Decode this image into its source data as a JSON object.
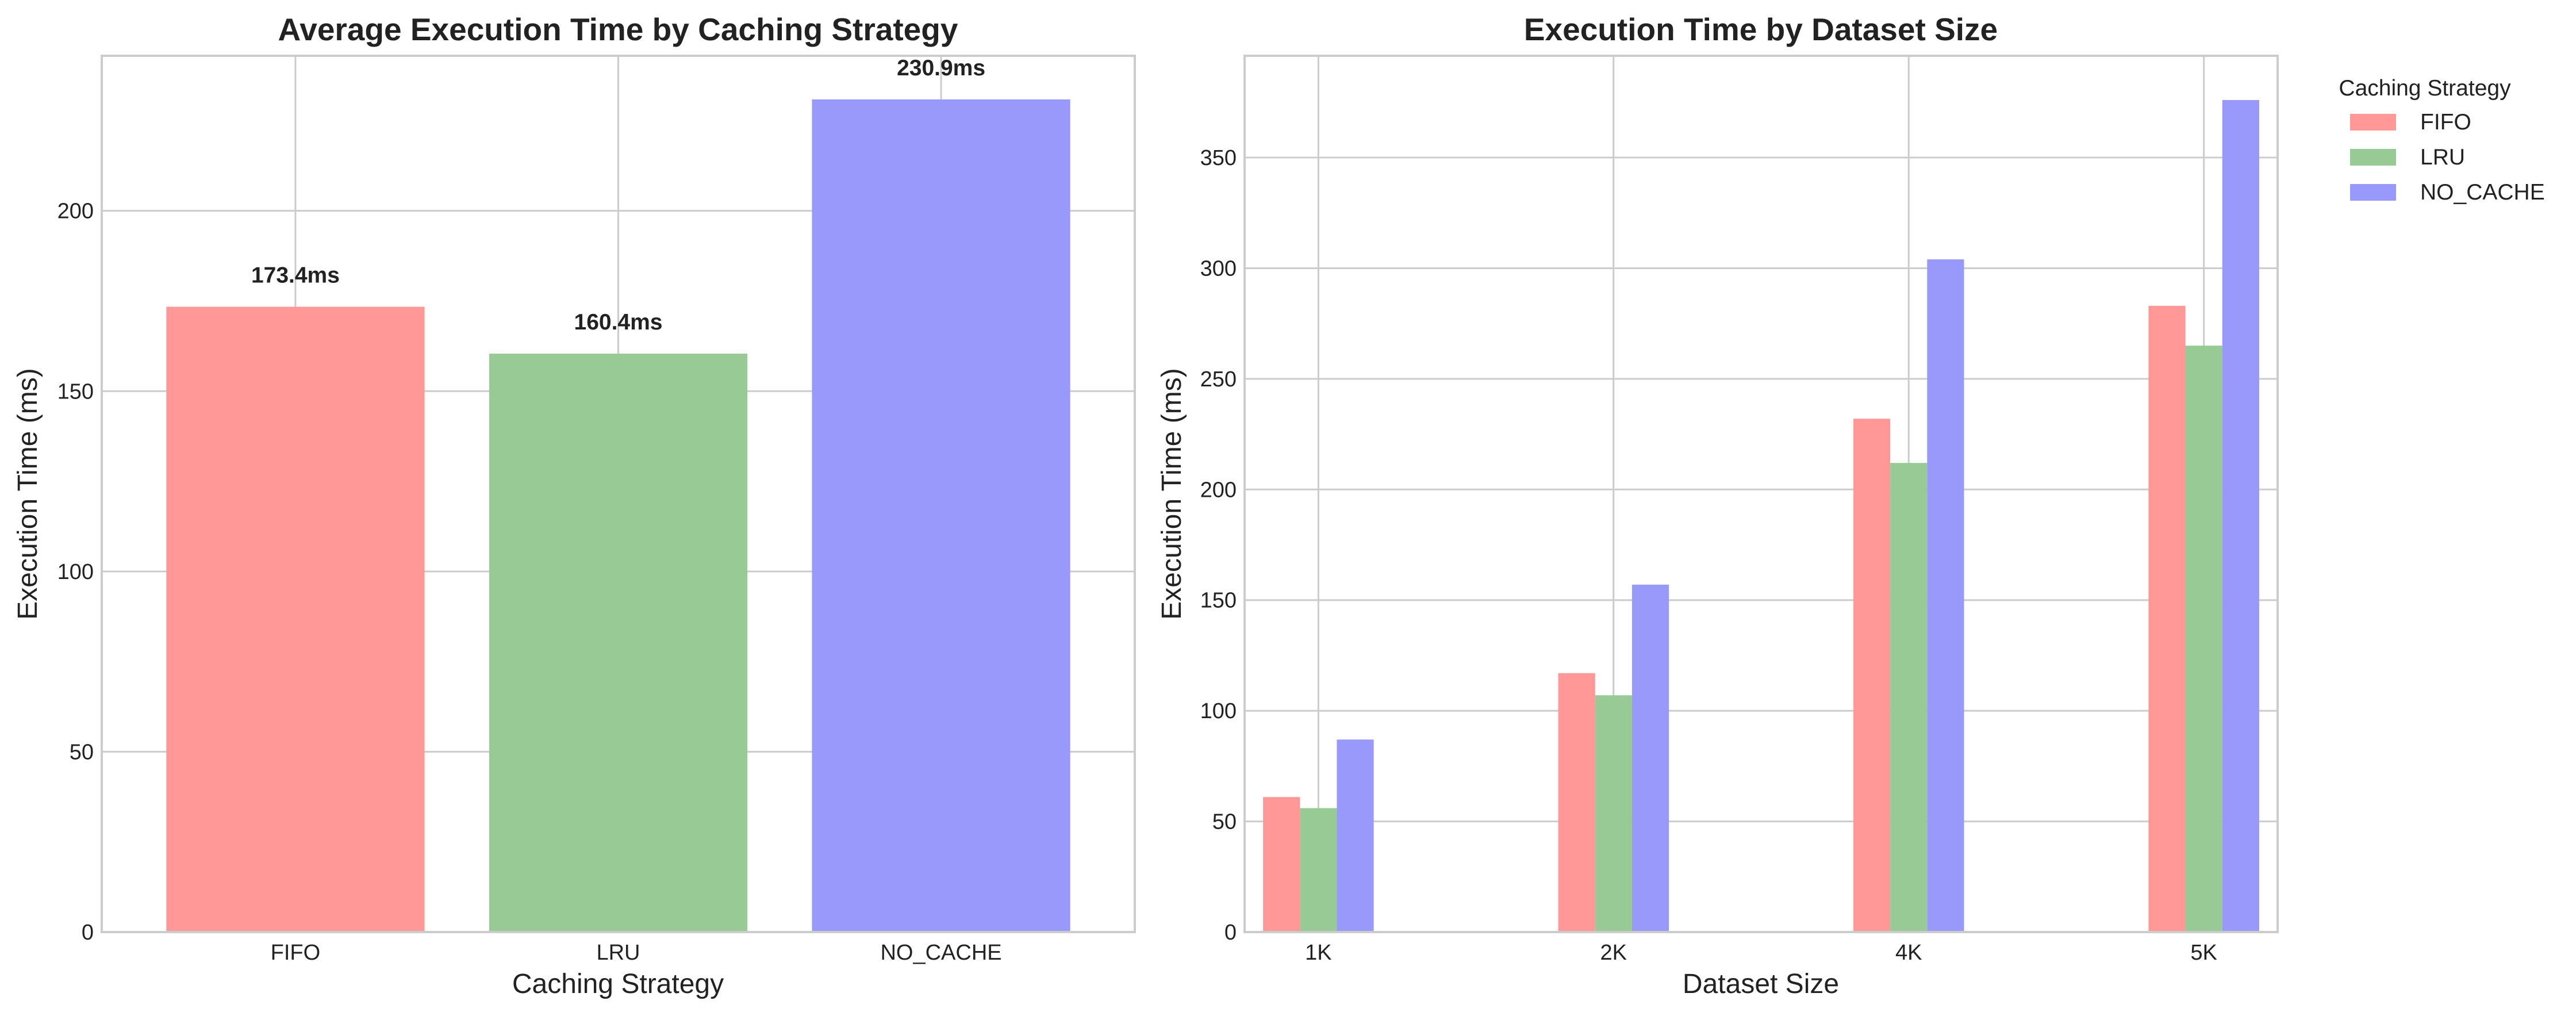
{
  "chart_data": [
    {
      "type": "bar",
      "title": "Average Execution Time by Caching Strategy",
      "xlabel": "Caching Strategy",
      "ylabel": "Execution Time (ms)",
      "categories": [
        "FIFO",
        "LRU",
        "NO_CACHE"
      ],
      "values": [
        173.4,
        160.4,
        230.9
      ],
      "data_labels": [
        "173.4ms",
        "160.4ms",
        "230.9ms"
      ],
      "colors": [
        "#ff9896",
        "#98ca96",
        "#9999fb"
      ],
      "ylim": [
        0,
        243
      ],
      "yticks": [
        0,
        50,
        100,
        150,
        200
      ],
      "grid": true
    },
    {
      "type": "bar",
      "title": "Execution Time by Dataset Size",
      "xlabel": "Dataset Size",
      "ylabel": "Execution Time (ms)",
      "categories": [
        "1K",
        "2K",
        "4K",
        "5K"
      ],
      "series": [
        {
          "name": "FIFO",
          "values": [
            61,
            117,
            232,
            283
          ],
          "color": "#ff9896"
        },
        {
          "name": "LRU",
          "values": [
            56,
            107,
            212,
            265
          ],
          "color": "#98ca96"
        },
        {
          "name": "NO_CACHE",
          "values": [
            87,
            157,
            304,
            376
          ],
          "color": "#9999fb"
        }
      ],
      "ylim": [
        0,
        396
      ],
      "yticks": [
        0,
        50,
        100,
        150,
        200,
        250,
        300,
        350
      ],
      "legend": {
        "title": "Caching Strategy",
        "placement": "outside upper right"
      },
      "grid": true
    }
  ]
}
